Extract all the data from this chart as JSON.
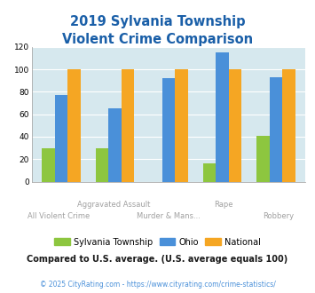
{
  "title_line1": "2019 Sylvania Township",
  "title_line2": "Violent Crime Comparison",
  "title_color": "#1a5fa8",
  "sylvania": [
    30,
    30,
    0,
    16,
    41
  ],
  "ohio": [
    77,
    65,
    92,
    115,
    93
  ],
  "national": [
    100,
    100,
    100,
    100,
    100
  ],
  "sylvania_color": "#8dc63f",
  "ohio_color": "#4a90d9",
  "national_color": "#f5a623",
  "ylim": [
    0,
    120
  ],
  "yticks": [
    0,
    20,
    40,
    60,
    80,
    100,
    120
  ],
  "bg_color": "#d6e8ee",
  "top_labels": [
    "",
    "Aggravated Assault",
    "",
    "Rape",
    ""
  ],
  "bot_labels": [
    "All Violent Crime",
    "",
    "Murder & Mans...",
    "",
    "Robbery"
  ],
  "note_text": "Compared to U.S. average. (U.S. average equals 100)",
  "note_color": "#1a1a1a",
  "copyright_text": "© 2025 CityRating.com - https://www.cityrating.com/crime-statistics/",
  "copyright_color": "#4a90d9",
  "legend_labels": [
    "Sylvania Township",
    "Ohio",
    "National"
  ]
}
